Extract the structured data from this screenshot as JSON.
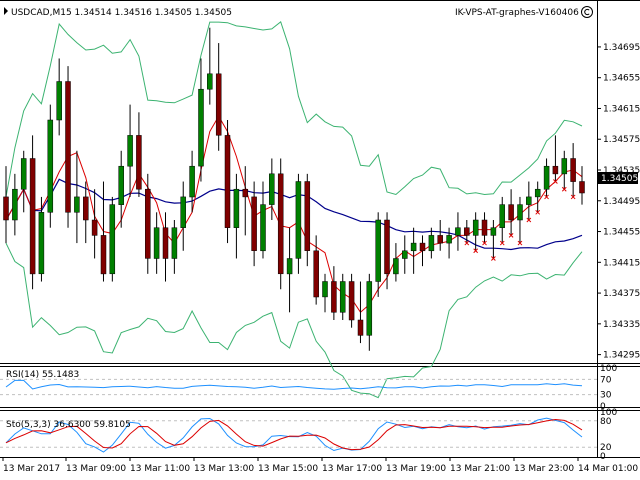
{
  "window": {
    "symbol_line": "USDCAD,M15  1.34514 1.34516 1.34505 1.34505",
    "indicator_name": "IK-VPS-AT-graphes-V160406",
    "icon": "copyright-circle-icon"
  },
  "colors": {
    "bull": "#008000",
    "bear": "#800000",
    "band": "#3cb371",
    "red_ma": "#dc0000",
    "blue_ma": "#00008b",
    "rsi": "#1e90ff",
    "stoch_main": "#1e90ff",
    "stoch_signal": "#dc0000",
    "level": "#c0c0c0"
  },
  "price_axis": {
    "labels": [
      "1.34695",
      "1.34655",
      "1.34615",
      "1.34575",
      "1.34535",
      "1.34495",
      "1.34455",
      "1.34415",
      "1.34375",
      "1.34335",
      "1.34295"
    ],
    "current": "1.34505",
    "min": 1.34288,
    "max": 1.3473
  },
  "rsi": {
    "caption": "RSI(14) 55.1483",
    "levels": [
      "100",
      "70",
      "30",
      "0"
    ]
  },
  "stoch": {
    "caption": "Sto(5,3,3) 36.6300 59.8105",
    "levels": [
      "100",
      "80",
      "20",
      "0"
    ]
  },
  "time_axis": [
    "13 Mar 2017",
    "13 Mar 09:00",
    "13 Mar 11:00",
    "13 Mar 13:00",
    "13 Mar 15:00",
    "13 Mar 17:00",
    "13 Mar 19:00",
    "13 Mar 21:00",
    "13 Mar 23:00",
    "14 Mar 01:00"
  ],
  "chart_data": {
    "type": "candlestick",
    "symbol": "USDCAD",
    "timeframe": "M15",
    "candles": [
      [
        1.345,
        1.3454,
        1.3444,
        1.3447
      ],
      [
        1.3447,
        1.3453,
        1.3445,
        1.3451
      ],
      [
        1.3451,
        1.3456,
        1.3448,
        1.3455
      ],
      [
        1.3455,
        1.3458,
        1.3438,
        1.344
      ],
      [
        1.344,
        1.345,
        1.3439,
        1.3448
      ],
      [
        1.3448,
        1.3462,
        1.3446,
        1.346
      ],
      [
        1.346,
        1.3468,
        1.3458,
        1.3465
      ],
      [
        1.3465,
        1.3467,
        1.3446,
        1.3448
      ],
      [
        1.3448,
        1.3456,
        1.3444,
        1.345
      ],
      [
        1.345,
        1.3452,
        1.3444,
        1.3447
      ],
      [
        1.3447,
        1.3451,
        1.3442,
        1.3445
      ],
      [
        1.3445,
        1.3452,
        1.3439,
        1.344
      ],
      [
        1.344,
        1.345,
        1.3439,
        1.3449
      ],
      [
        1.3449,
        1.3456,
        1.3446,
        1.3454
      ],
      [
        1.3454,
        1.3462,
        1.345,
        1.3458
      ],
      [
        1.3458,
        1.3461,
        1.345,
        1.3451
      ],
      [
        1.3451,
        1.3453,
        1.344,
        1.3442
      ],
      [
        1.3442,
        1.3448,
        1.344,
        1.3446
      ],
      [
        1.3446,
        1.3448,
        1.3439,
        1.3442
      ],
      [
        1.3442,
        1.3447,
        1.344,
        1.3446
      ],
      [
        1.3446,
        1.3452,
        1.3443,
        1.345
      ],
      [
        1.345,
        1.3456,
        1.3448,
        1.3454
      ],
      [
        1.3454,
        1.3468,
        1.3452,
        1.3464
      ],
      [
        1.3464,
        1.3472,
        1.3462,
        1.3466
      ],
      [
        1.3466,
        1.347,
        1.3456,
        1.3458
      ],
      [
        1.3458,
        1.346,
        1.3444,
        1.3446
      ],
      [
        1.3446,
        1.3453,
        1.3442,
        1.3451
      ],
      [
        1.3451,
        1.3454,
        1.3445,
        1.345
      ],
      [
        1.345,
        1.3452,
        1.3441,
        1.3443
      ],
      [
        1.3443,
        1.3452,
        1.3442,
        1.3449
      ],
      [
        1.3449,
        1.3455,
        1.3447,
        1.3453
      ],
      [
        1.3453,
        1.3455,
        1.3438,
        1.344
      ],
      [
        1.344,
        1.3446,
        1.3435,
        1.3442
      ],
      [
        1.3442,
        1.3453,
        1.344,
        1.3452
      ],
      [
        1.3452,
        1.3453,
        1.3441,
        1.3443
      ],
      [
        1.3443,
        1.3445,
        1.3436,
        1.3437
      ],
      [
        1.3437,
        1.344,
        1.3435,
        1.3439
      ],
      [
        1.3439,
        1.3441,
        1.3434,
        1.3435
      ],
      [
        1.3435,
        1.344,
        1.3434,
        1.3439
      ],
      [
        1.3439,
        1.344,
        1.3433,
        1.3434
      ],
      [
        1.3434,
        1.3439,
        1.3431,
        1.3432
      ],
      [
        1.3432,
        1.344,
        1.343,
        1.3439
      ],
      [
        1.3439,
        1.3448,
        1.3437,
        1.3447
      ],
      [
        1.3447,
        1.3448,
        1.3438,
        1.344
      ],
      [
        1.344,
        1.3444,
        1.3439,
        1.3442
      ],
      [
        1.3442,
        1.3445,
        1.344,
        1.3443
      ],
      [
        1.3443,
        1.3446,
        1.344,
        1.3444
      ],
      [
        1.3444,
        1.3445,
        1.3441,
        1.3443
      ],
      [
        1.3443,
        1.3446,
        1.3442,
        1.3445
      ],
      [
        1.3445,
        1.3447,
        1.3443,
        1.3444
      ],
      [
        1.3444,
        1.3446,
        1.3442,
        1.3445
      ],
      [
        1.3445,
        1.3448,
        1.3443,
        1.3446
      ],
      [
        1.3446,
        1.3447,
        1.3444,
        1.3445
      ],
      [
        1.3445,
        1.3448,
        1.3443,
        1.3447
      ],
      [
        1.3447,
        1.3448,
        1.3444,
        1.3445
      ],
      [
        1.3445,
        1.3447,
        1.3442,
        1.3446
      ],
      [
        1.3446,
        1.345,
        1.3444,
        1.3449
      ],
      [
        1.3449,
        1.3451,
        1.3445,
        1.3447
      ],
      [
        1.3447,
        1.345,
        1.3444,
        1.3449
      ],
      [
        1.3449,
        1.3452,
        1.3447,
        1.345
      ],
      [
        1.345,
        1.3452,
        1.3448,
        1.3451
      ],
      [
        1.3451,
        1.3455,
        1.345,
        1.3454
      ],
      [
        1.3454,
        1.3458,
        1.3452,
        1.3453
      ],
      [
        1.3453,
        1.3456,
        1.3451,
        1.3455
      ],
      [
        1.3455,
        1.3457,
        1.345,
        1.3452
      ],
      [
        1.3452,
        1.3454,
        1.3449,
        1.34505
      ]
    ]
  }
}
